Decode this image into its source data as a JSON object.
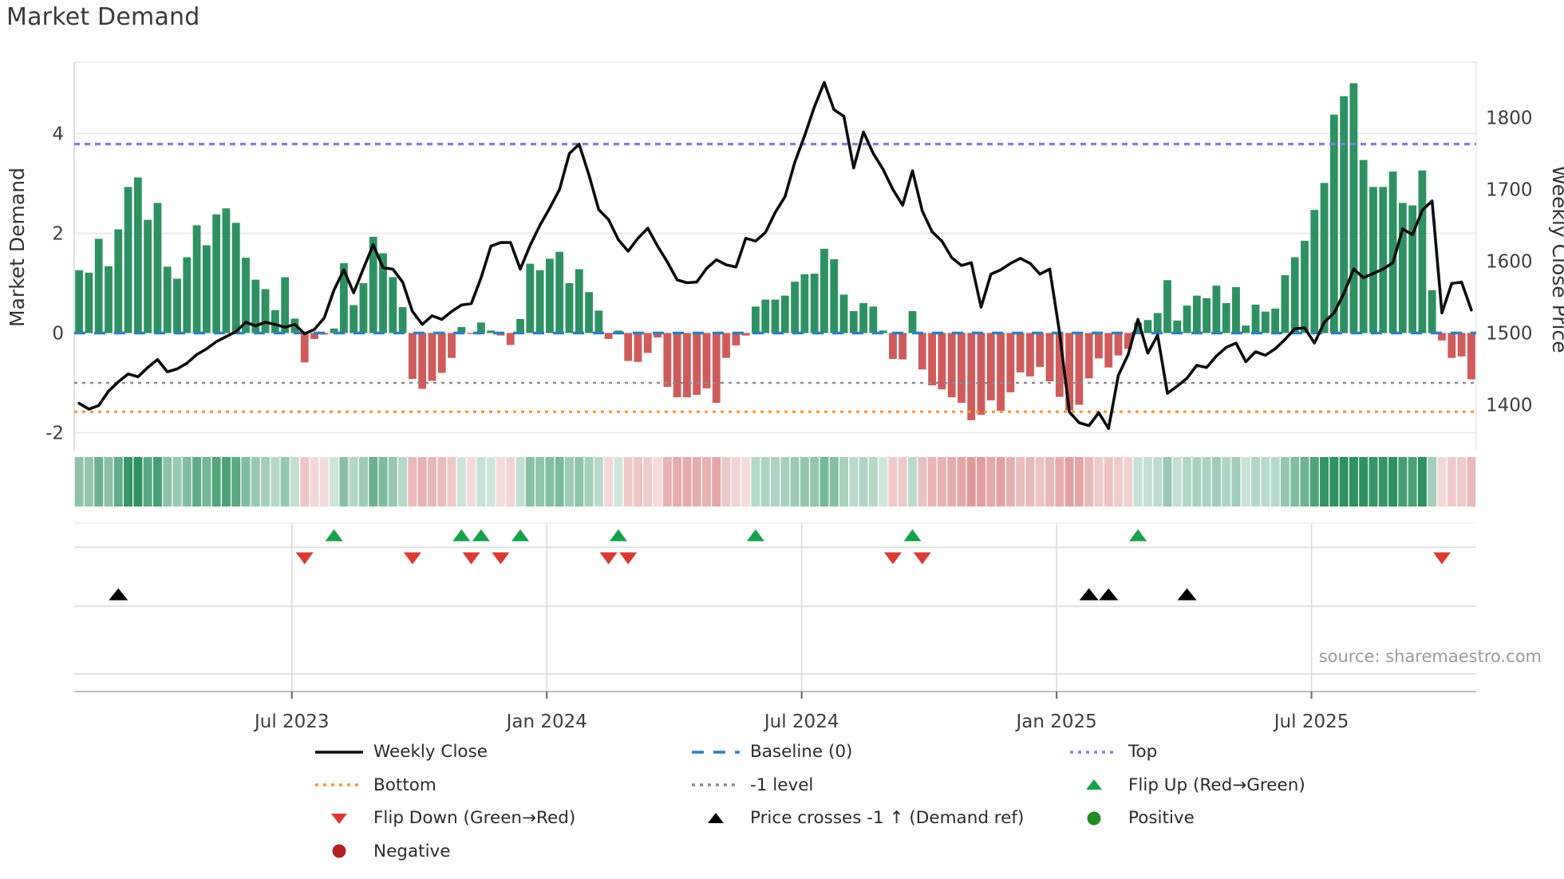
{
  "title": "Market Demand",
  "source_note": "source: sharemaestro.com",
  "axes": {
    "left": {
      "label": "Market Demand",
      "ticks": [
        4,
        2,
        0,
        -2
      ]
    },
    "right": {
      "label": "Weekly Close Price",
      "ticks": [
        1800,
        1700,
        1600,
        1500,
        1400
      ]
    },
    "x": {
      "tick_labels": [
        "Jul 2023",
        "Jan 2024",
        "Jul 2024",
        "Jan 2025",
        "Jul 2025"
      ],
      "tick_weeks": [
        21.7,
        47.7,
        73.7,
        99.7,
        125.7
      ]
    }
  },
  "legend": {
    "items": [
      {
        "label": "Weekly Close",
        "swatch": "line",
        "color_key": "price_line"
      },
      {
        "label": "Bottom",
        "swatch": "dotted",
        "color_key": "bottom_line"
      },
      {
        "label": "Flip Down (Green→Red)",
        "swatch": "triangle-down",
        "color_key": "flip_down"
      },
      {
        "label": "Negative",
        "swatch": "circle",
        "color_key": "negative_dot"
      },
      {
        "label": "Baseline (0)",
        "swatch": "dashed",
        "color_key": "baseline"
      },
      {
        "label": "-1 level",
        "swatch": "dotted",
        "color_key": "minus_one"
      },
      {
        "label": "Price crosses -1 ↑ (Demand ref)",
        "swatch": "triangle-up",
        "color_key": "price_cross"
      },
      {
        "label": "Top",
        "swatch": "dotted",
        "color_key": "top_line"
      },
      {
        "label": "Flip Up (Red→Green)",
        "swatch": "triangle-up",
        "color_key": "flip_up"
      },
      {
        "label": "Positive",
        "swatch": "circle",
        "color_key": "positive_dot"
      }
    ]
  },
  "colors": {
    "bar_positive": "#2e9162",
    "bar_negative": "#cf5b5b",
    "heat_positive": "#2e9162",
    "heat_negative": "#d06565",
    "price_line": "#0d0d0d",
    "baseline": "#2e7fc0",
    "top_line": "#8080d8",
    "minus_one": "#8c8c8c",
    "bottom_line": "#f49b3a",
    "flip_up": "#17a14b",
    "flip_down": "#d93a33",
    "price_cross": "#000000",
    "positive_dot": "#228b22",
    "negative_dot": "#b22222",
    "grid": "#e7e7ea",
    "panel_grid": "#dadade",
    "axis_text": "#3d3d3d",
    "source_text": "#9b9b9b"
  },
  "chart_data": {
    "type": "bar+line",
    "x_unit": "week",
    "weeks": 143,
    "ylim_left": [
      -2.36,
      5.4
    ],
    "ylim_right": [
      1336,
      1875
    ],
    "reference_levels": {
      "baseline": 0,
      "top": 3.79,
      "minus_one": -1,
      "bottom": -1.58
    },
    "series": [
      {
        "name": "Market Demand",
        "type": "bar",
        "axis": "left",
        "values": [
          1.26,
          1.21,
          1.89,
          1.34,
          2.08,
          2.93,
          3.12,
          2.27,
          2.61,
          1.33,
          1.09,
          1.52,
          2.16,
          1.76,
          2.38,
          2.5,
          2.21,
          1.51,
          1.07,
          0.88,
          0.46,
          1.12,
          0.29,
          -0.59,
          -0.12,
          -0.03,
          0.09,
          1.4,
          0.56,
          1.0,
          1.93,
          1.6,
          1.12,
          0.52,
          -0.92,
          -1.12,
          -0.96,
          -0.8,
          -0.5,
          0.12,
          -0.02,
          0.21,
          0.05,
          -0.05,
          -0.24,
          0.28,
          1.39,
          1.26,
          1.49,
          1.63,
          1.0,
          1.28,
          0.82,
          0.45,
          -0.12,
          0.05,
          -0.56,
          -0.58,
          -0.4,
          -0.09,
          -1.08,
          -1.29,
          -1.29,
          -1.24,
          -1.11,
          -1.4,
          -0.5,
          -0.25,
          -0.05,
          0.53,
          0.67,
          0.67,
          0.75,
          1.03,
          1.18,
          1.19,
          1.69,
          1.48,
          0.77,
          0.44,
          0.6,
          0.53,
          0.05,
          -0.52,
          -0.53,
          0.44,
          -0.73,
          -1.05,
          -1.13,
          -1.29,
          -1.4,
          -1.75,
          -1.64,
          -1.35,
          -1.56,
          -1.19,
          -0.79,
          -0.87,
          -0.68,
          -0.97,
          -1.28,
          -1.55,
          -1.44,
          -0.91,
          -0.51,
          -0.69,
          -0.45,
          -0.32,
          0.21,
          0.26,
          0.4,
          1.06,
          0.25,
          0.55,
          0.75,
          0.7,
          0.95,
          0.6,
          0.92,
          0.15,
          0.57,
          0.43,
          0.49,
          1.16,
          1.52,
          1.85,
          2.47,
          3.01,
          4.38,
          4.75,
          5.01,
          3.47,
          2.93,
          2.93,
          3.24,
          2.61,
          2.56,
          3.26,
          0.86,
          -0.15,
          -0.5,
          -0.47,
          -0.93
        ]
      },
      {
        "name": "Weekly Close",
        "type": "line",
        "axis": "right",
        "values": [
          1402,
          1394,
          1399,
          1419,
          1432,
          1443,
          1439,
          1452,
          1463,
          1446,
          1450,
          1458,
          1470,
          1478,
          1488,
          1495,
          1502,
          1515,
          1510,
          1515,
          1512,
          1508,
          1512,
          1499,
          1505,
          1521,
          1560,
          1588,
          1556,
          1590,
          1623,
          1591,
          1589,
          1571,
          1530,
          1512,
          1524,
          1519,
          1530,
          1539,
          1541,
          1577,
          1621,
          1626,
          1626,
          1589,
          1622,
          1650,
          1674,
          1700,
          1750,
          1763,
          1720,
          1672,
          1658,
          1630,
          1614,
          1632,
          1646,
          1621,
          1599,
          1574,
          1570,
          1571,
          1590,
          1602,
          1595,
          1592,
          1632,
          1628,
          1640,
          1668,
          1690,
          1738,
          1775,
          1815,
          1849,
          1811,
          1802,
          1730,
          1780,
          1750,
          1728,
          1700,
          1678,
          1726,
          1670,
          1641,
          1628,
          1605,
          1594,
          1598,
          1536,
          1582,
          1588,
          1597,
          1604,
          1597,
          1582,
          1589,
          1501,
          1390,
          1375,
          1371,
          1389,
          1367,
          1441,
          1470,
          1519,
          1472,
          1497,
          1416,
          1426,
          1437,
          1455,
          1452,
          1468,
          1480,
          1486,
          1460,
          1474,
          1469,
          1478,
          1491,
          1506,
          1507,
          1486,
          1515,
          1528,
          1555,
          1589,
          1577,
          1583,
          1589,
          1598,
          1645,
          1637,
          1671,
          1684,
          1528,
          1569,
          1571,
          1532
        ]
      }
    ],
    "markers": {
      "flip_up_weeks": [
        26,
        39,
        41,
        45,
        55,
        69,
        85,
        108
      ],
      "flip_down_weeks": [
        23,
        34,
        40,
        43,
        54,
        56,
        83,
        86,
        139
      ],
      "price_cross_weeks": [
        4,
        103,
        105,
        113
      ]
    },
    "heatmap": "sign+intensity of Market Demand values"
  }
}
